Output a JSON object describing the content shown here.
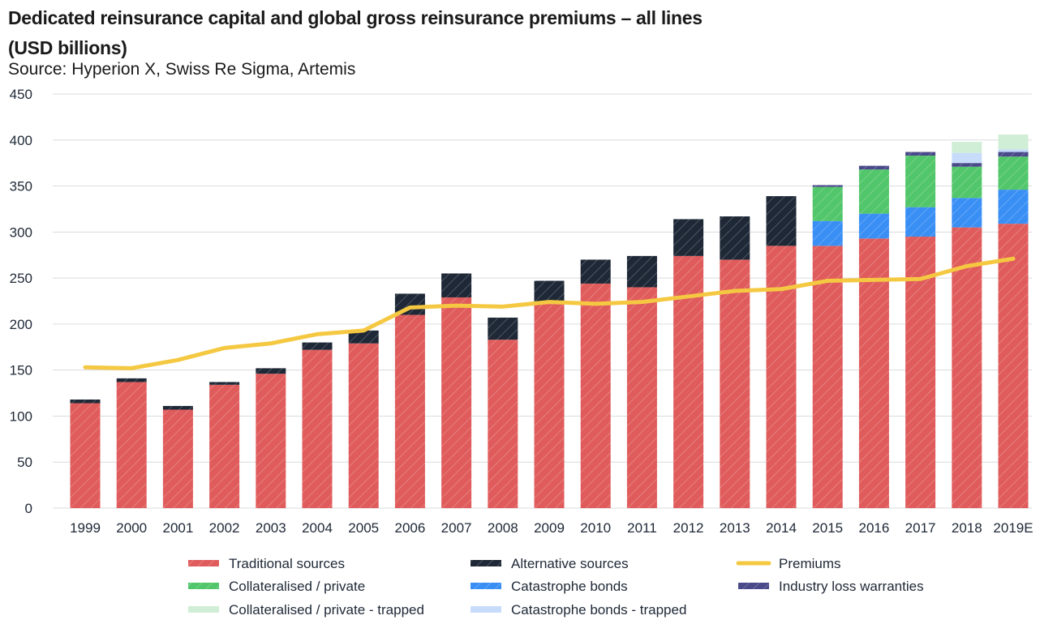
{
  "chart_data": {
    "type": "bar",
    "stacked": true,
    "title": "Dedicated reinsurance capital and global gross reinsurance premiums – all lines (USD billions)",
    "subtitle": "Source: Hyperion X, Swiss Re Sigma, Artemis",
    "xlabel": "",
    "ylabel": "",
    "ylim": [
      0,
      450
    ],
    "yticks": [
      0,
      50,
      100,
      150,
      200,
      250,
      300,
      350,
      400,
      450
    ],
    "grid": true,
    "legend_placement": "bottom",
    "categories": [
      "1999",
      "2000",
      "2001",
      "2002",
      "2003",
      "2004",
      "2005",
      "2006",
      "2007",
      "2008",
      "2009",
      "2010",
      "2011",
      "2012",
      "2013",
      "2014",
      "2015",
      "2016",
      "2017",
      "2018",
      "2019E"
    ],
    "series": [
      {
        "name": "Traditional sources",
        "type": "bar",
        "color": "#e05c5c",
        "hatched": true,
        "values": [
          114,
          137,
          107,
          134,
          146,
          172,
          179,
          210,
          229,
          183,
          222,
          244,
          240,
          274,
          270,
          285,
          285,
          293,
          295,
          305,
          309
        ]
      },
      {
        "name": "Alternative sources",
        "type": "bar",
        "color": "#1e2836",
        "hatched": true,
        "values": [
          4,
          4,
          4,
          3,
          6,
          8,
          14,
          23,
          26,
          24,
          25,
          26,
          34,
          40,
          47,
          54,
          0,
          0,
          0,
          0,
          0
        ]
      },
      {
        "name": "Catastrophe bonds",
        "type": "bar",
        "color": "#3a8ff5",
        "hatched": true,
        "values": [
          0,
          0,
          0,
          0,
          0,
          0,
          0,
          0,
          0,
          0,
          0,
          0,
          0,
          0,
          0,
          0,
          27,
          27,
          32,
          32,
          37
        ]
      },
      {
        "name": "Collateralised / private",
        "type": "bar",
        "color": "#52c66a",
        "hatched": true,
        "values": [
          0,
          0,
          0,
          0,
          0,
          0,
          0,
          0,
          0,
          0,
          0,
          0,
          0,
          0,
          0,
          0,
          37,
          48,
          56,
          34,
          36
        ]
      },
      {
        "name": "Industry loss warranties",
        "type": "bar",
        "color": "#4a4a8a",
        "hatched": true,
        "values": [
          0,
          0,
          0,
          0,
          0,
          0,
          0,
          0,
          0,
          0,
          0,
          0,
          0,
          0,
          0,
          0,
          2,
          4,
          4,
          4,
          5
        ]
      },
      {
        "name": "Catastrophe bonds - trapped",
        "type": "bar",
        "color": "#c7dcfa",
        "hatched": false,
        "values": [
          0,
          0,
          0,
          0,
          0,
          0,
          0,
          0,
          0,
          0,
          0,
          0,
          0,
          0,
          0,
          0,
          0,
          0,
          0,
          11,
          3
        ]
      },
      {
        "name": "Collateralised / private - trapped",
        "type": "bar",
        "color": "#d0eed5",
        "hatched": false,
        "values": [
          0,
          0,
          0,
          0,
          0,
          0,
          0,
          0,
          0,
          0,
          0,
          0,
          0,
          0,
          0,
          0,
          0,
          0,
          0,
          12,
          16
        ]
      },
      {
        "name": "Premiums",
        "type": "line",
        "color": "#f5c842",
        "values": [
          153,
          152,
          161,
          174,
          179,
          189,
          193,
          218,
          220,
          219,
          224,
          222,
          224,
          230,
          236,
          238,
          247,
          248,
          249,
          263,
          271
        ]
      }
    ],
    "legend_order": [
      "Traditional sources",
      "Alternative sources",
      "Premiums",
      "Collateralised / private",
      "Catastrophe bonds",
      "Industry loss warranties",
      "Collateralised / private - trapped",
      "Catastrophe bonds - trapped"
    ]
  }
}
